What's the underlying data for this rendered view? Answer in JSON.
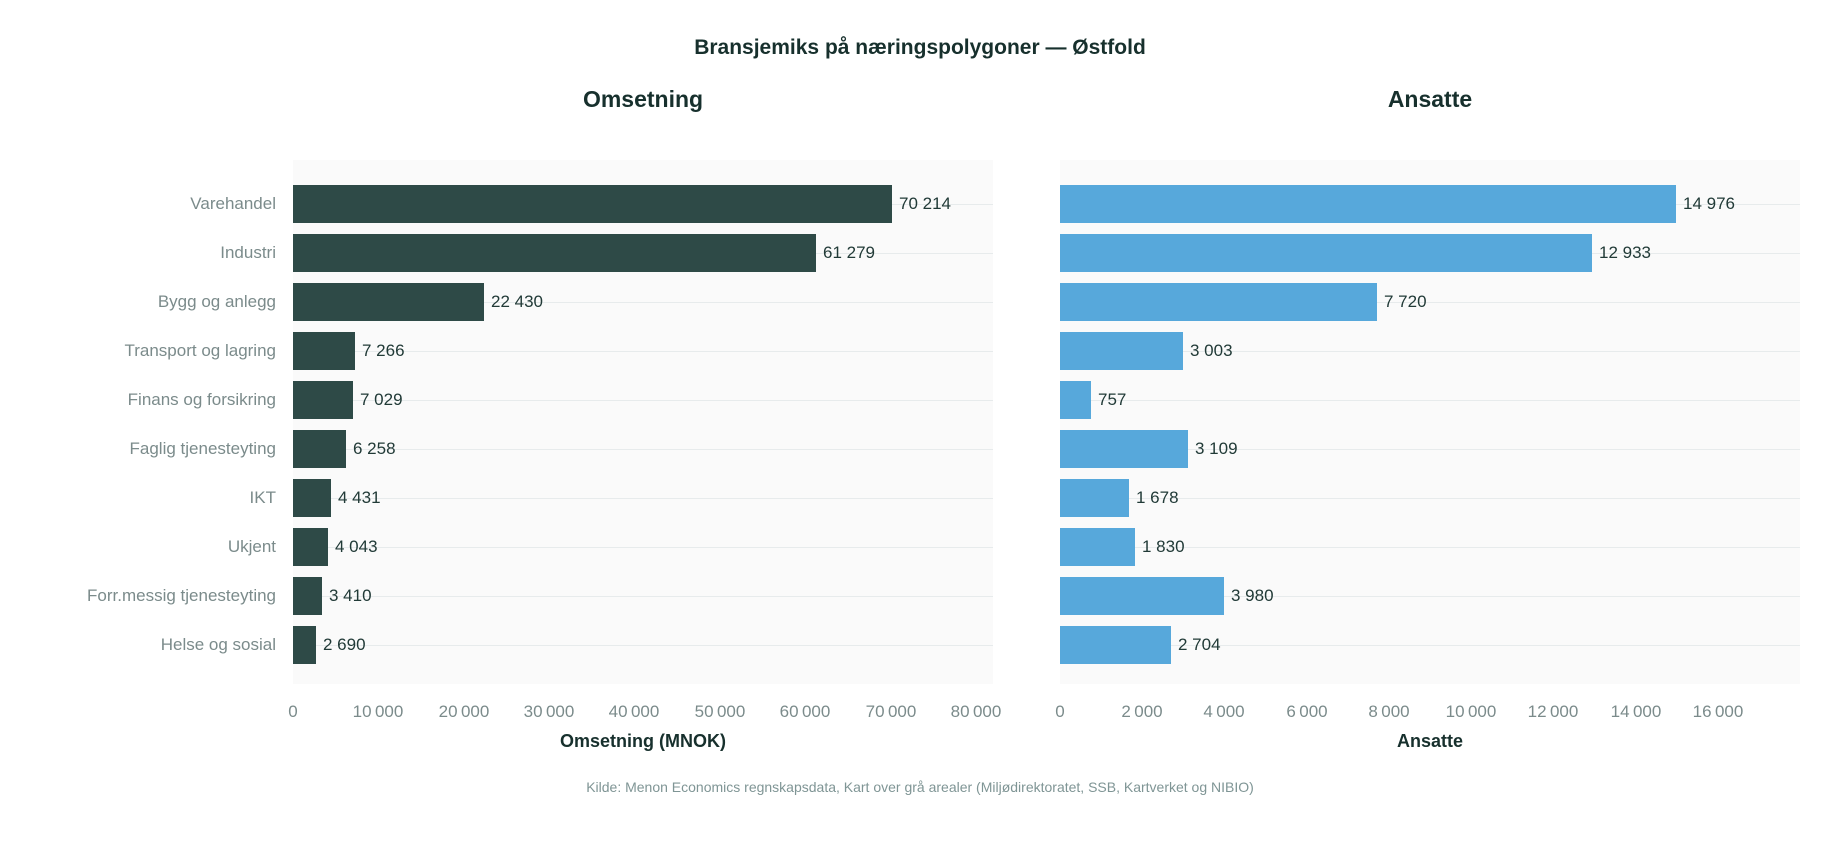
{
  "title": "Bransjemiks på næringspolygoner — Østfold",
  "footer": "Kilde: Menon Economics regnskapsdata, Kart over grå arealer (Miljødirektoratet, SSB, Kartverket og NIBIO)",
  "colors": {
    "fig_bg": "#ffffff",
    "panel_bg": "#fafafa",
    "grid_line": "#e7ebec",
    "bar_omsetning": "#2e4a47",
    "bar_ansatte": "#57a8db",
    "axis_text": "#7b8b8b",
    "value_text": "#213a37",
    "title_text": "#17302d",
    "footer_text": "#7f9595"
  },
  "chart_data": {
    "type": "bar",
    "orientation": "horizontal",
    "grid": "horizontal",
    "legend": false,
    "title": "Bransjemiks på næringspolygoner — Østfold",
    "categories": [
      "Varehandel",
      "Industri",
      "Bygg og anlegg",
      "Transport og lagring",
      "Finans og forsikring",
      "Faglig tjenesteyting",
      "IKT",
      "Ukjent",
      "Forr.messig tjenesteyting",
      "Helse og sosial"
    ],
    "panels": [
      {
        "name": "omsetning",
        "title": "Omsetning",
        "xlabel": "Omsetning (MNOK)",
        "values": [
          70214,
          61279,
          22430,
          7266,
          7029,
          6258,
          4431,
          4043,
          3410,
          2690
        ],
        "value_labels": [
          "70 214",
          "61 279",
          "22 430",
          "7 266",
          "7 029",
          "6 258",
          "4 431",
          "4 043",
          "3 410",
          "2 690"
        ],
        "ticks": [
          0,
          10000,
          20000,
          30000,
          40000,
          50000,
          60000,
          70000,
          80000
        ],
        "xlim": [
          0,
          82000
        ]
      },
      {
        "name": "ansatte",
        "title": "Ansatte",
        "xlabel": "Ansatte",
        "values": [
          14976,
          12933,
          7720,
          3003,
          757,
          3109,
          1678,
          1830,
          3980,
          2704
        ],
        "value_labels": [
          "14 976",
          "12 933",
          "7 720",
          "3 003",
          "757",
          "3 109",
          "1 678",
          "1 830",
          "3 980",
          "2 704"
        ],
        "ticks": [
          0,
          2000,
          4000,
          6000,
          8000,
          10000,
          12000,
          14000,
          16000
        ],
        "xlim": [
          0,
          18000
        ]
      }
    ]
  }
}
